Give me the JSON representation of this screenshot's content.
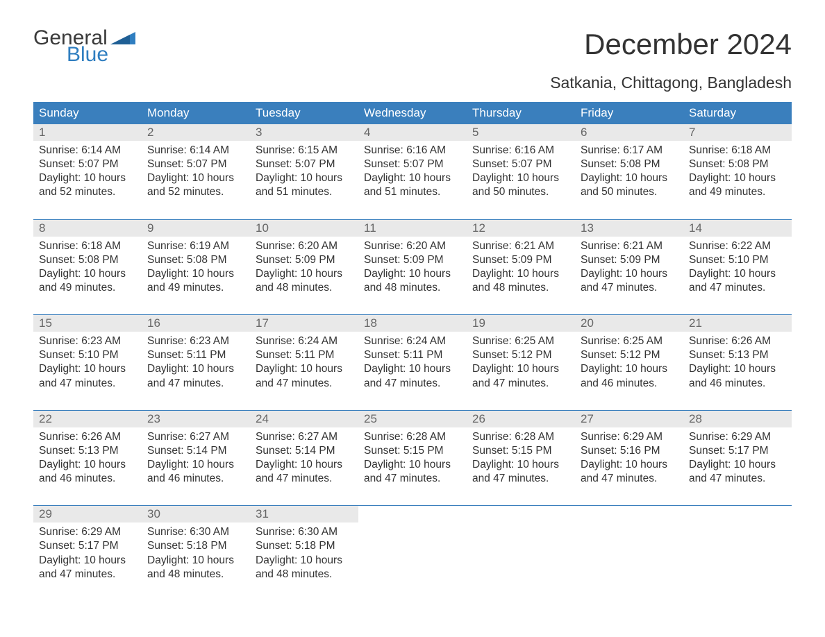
{
  "logo": {
    "word1": "General",
    "word2": "Blue",
    "text_color": "#3a3a3a",
    "accent_color": "#2f7ec0"
  },
  "title": "December 2024",
  "location": "Satkania, Chittagong, Bangladesh",
  "colors": {
    "header_bg": "#3a7fbd",
    "header_text": "#ffffff",
    "daynum_bg": "#e9e9e9",
    "daynum_text": "#666666",
    "body_text": "#333333",
    "separator": "#3a7fbd",
    "page_bg": "#ffffff"
  },
  "typography": {
    "title_fontsize": 42,
    "location_fontsize": 23,
    "dow_fontsize": 17,
    "daynum_fontsize": 17,
    "body_fontsize": 15.5
  },
  "calendar": {
    "type": "table",
    "columns": [
      "Sunday",
      "Monday",
      "Tuesday",
      "Wednesday",
      "Thursday",
      "Friday",
      "Saturday"
    ],
    "weeks": [
      [
        {
          "day": "1",
          "sunrise": "6:14 AM",
          "sunset": "5:07 PM",
          "daylight": "10 hours and 52 minutes."
        },
        {
          "day": "2",
          "sunrise": "6:14 AM",
          "sunset": "5:07 PM",
          "daylight": "10 hours and 52 minutes."
        },
        {
          "day": "3",
          "sunrise": "6:15 AM",
          "sunset": "5:07 PM",
          "daylight": "10 hours and 51 minutes."
        },
        {
          "day": "4",
          "sunrise": "6:16 AM",
          "sunset": "5:07 PM",
          "daylight": "10 hours and 51 minutes."
        },
        {
          "day": "5",
          "sunrise": "6:16 AM",
          "sunset": "5:07 PM",
          "daylight": "10 hours and 50 minutes."
        },
        {
          "day": "6",
          "sunrise": "6:17 AM",
          "sunset": "5:08 PM",
          "daylight": "10 hours and 50 minutes."
        },
        {
          "day": "7",
          "sunrise": "6:18 AM",
          "sunset": "5:08 PM",
          "daylight": "10 hours and 49 minutes."
        }
      ],
      [
        {
          "day": "8",
          "sunrise": "6:18 AM",
          "sunset": "5:08 PM",
          "daylight": "10 hours and 49 minutes."
        },
        {
          "day": "9",
          "sunrise": "6:19 AM",
          "sunset": "5:08 PM",
          "daylight": "10 hours and 49 minutes."
        },
        {
          "day": "10",
          "sunrise": "6:20 AM",
          "sunset": "5:09 PM",
          "daylight": "10 hours and 48 minutes."
        },
        {
          "day": "11",
          "sunrise": "6:20 AM",
          "sunset": "5:09 PM",
          "daylight": "10 hours and 48 minutes."
        },
        {
          "day": "12",
          "sunrise": "6:21 AM",
          "sunset": "5:09 PM",
          "daylight": "10 hours and 48 minutes."
        },
        {
          "day": "13",
          "sunrise": "6:21 AM",
          "sunset": "5:09 PM",
          "daylight": "10 hours and 47 minutes."
        },
        {
          "day": "14",
          "sunrise": "6:22 AM",
          "sunset": "5:10 PM",
          "daylight": "10 hours and 47 minutes."
        }
      ],
      [
        {
          "day": "15",
          "sunrise": "6:23 AM",
          "sunset": "5:10 PM",
          "daylight": "10 hours and 47 minutes."
        },
        {
          "day": "16",
          "sunrise": "6:23 AM",
          "sunset": "5:11 PM",
          "daylight": "10 hours and 47 minutes."
        },
        {
          "day": "17",
          "sunrise": "6:24 AM",
          "sunset": "5:11 PM",
          "daylight": "10 hours and 47 minutes."
        },
        {
          "day": "18",
          "sunrise": "6:24 AM",
          "sunset": "5:11 PM",
          "daylight": "10 hours and 47 minutes."
        },
        {
          "day": "19",
          "sunrise": "6:25 AM",
          "sunset": "5:12 PM",
          "daylight": "10 hours and 47 minutes."
        },
        {
          "day": "20",
          "sunrise": "6:25 AM",
          "sunset": "5:12 PM",
          "daylight": "10 hours and 46 minutes."
        },
        {
          "day": "21",
          "sunrise": "6:26 AM",
          "sunset": "5:13 PM",
          "daylight": "10 hours and 46 minutes."
        }
      ],
      [
        {
          "day": "22",
          "sunrise": "6:26 AM",
          "sunset": "5:13 PM",
          "daylight": "10 hours and 46 minutes."
        },
        {
          "day": "23",
          "sunrise": "6:27 AM",
          "sunset": "5:14 PM",
          "daylight": "10 hours and 46 minutes."
        },
        {
          "day": "24",
          "sunrise": "6:27 AM",
          "sunset": "5:14 PM",
          "daylight": "10 hours and 47 minutes."
        },
        {
          "day": "25",
          "sunrise": "6:28 AM",
          "sunset": "5:15 PM",
          "daylight": "10 hours and 47 minutes."
        },
        {
          "day": "26",
          "sunrise": "6:28 AM",
          "sunset": "5:15 PM",
          "daylight": "10 hours and 47 minutes."
        },
        {
          "day": "27",
          "sunrise": "6:29 AM",
          "sunset": "5:16 PM",
          "daylight": "10 hours and 47 minutes."
        },
        {
          "day": "28",
          "sunrise": "6:29 AM",
          "sunset": "5:17 PM",
          "daylight": "10 hours and 47 minutes."
        }
      ],
      [
        {
          "day": "29",
          "sunrise": "6:29 AM",
          "sunset": "5:17 PM",
          "daylight": "10 hours and 47 minutes."
        },
        {
          "day": "30",
          "sunrise": "6:30 AM",
          "sunset": "5:18 PM",
          "daylight": "10 hours and 48 minutes."
        },
        {
          "day": "31",
          "sunrise": "6:30 AM",
          "sunset": "5:18 PM",
          "daylight": "10 hours and 48 minutes."
        },
        null,
        null,
        null,
        null
      ]
    ],
    "labels": {
      "sunrise": "Sunrise:",
      "sunset": "Sunset:",
      "daylight": "Daylight:"
    }
  }
}
